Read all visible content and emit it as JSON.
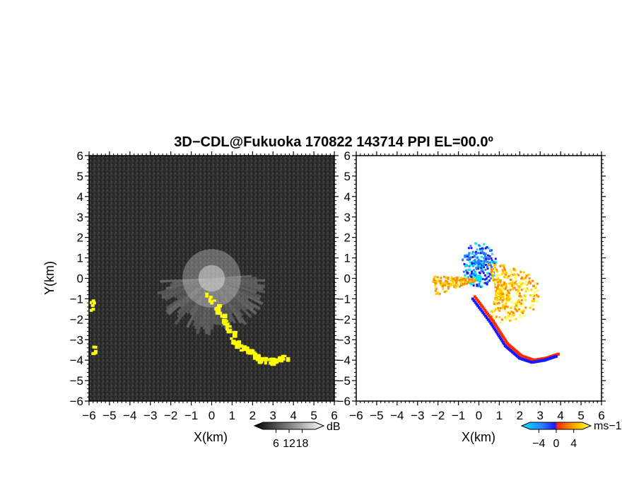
{
  "chart_data": [
    {
      "type": "heatmap",
      "title": "3D−CDL@Fukuoka 170822 143714 PPI EL=00.0º",
      "panel": "reflectivity",
      "xlabel": "X(km)",
      "ylabel": "Y(km)",
      "xlim": [
        -6,
        6
      ],
      "ylim": [
        -6,
        6
      ],
      "xticks": [
        "−6",
        "−5",
        "−4",
        "−3",
        "−2",
        "−1",
        "0",
        "1",
        "2",
        "3",
        "4",
        "5",
        "6"
      ],
      "yticks": [
        "−6",
        "−5",
        "−4",
        "−3",
        "−2",
        "−1",
        "0",
        "1",
        "2",
        "3",
        "4",
        "5",
        "6"
      ],
      "colorbar": {
        "unit": "dB",
        "ticks": [
          "6",
          "12",
          "18"
        ],
        "range": [
          0,
          24
        ],
        "colors": [
          "#000000",
          "#ffffff"
        ]
      },
      "highlight_color": "#ffff00",
      "background_color": "#303030",
      "features": [
        {
          "name": "near-field fan",
          "x": 0,
          "y": 0,
          "radius_km": 2.6,
          "bearing_deg": [
            85,
            265
          ]
        },
        {
          "name": "yellow trail",
          "points": [
            [
              -0.2,
              -0.8
            ],
            [
              0.5,
              -2.0
            ],
            [
              1.2,
              -3.1
            ],
            [
              1.8,
              -3.6
            ],
            [
              2.4,
              -3.9
            ],
            [
              3.0,
              -4.0
            ],
            [
              3.6,
              -3.8
            ]
          ]
        },
        {
          "name": "left edge echoes",
          "points": [
            [
              -5.9,
              -1.3
            ],
            [
              -5.8,
              -3.4
            ]
          ]
        }
      ]
    },
    {
      "type": "heatmap",
      "panel": "doppler velocity",
      "xlabel": "X(km)",
      "xlim": [
        -6,
        6
      ],
      "ylim": [
        -6,
        6
      ],
      "xticks": [
        "−6",
        "−5",
        "−4",
        "−3",
        "−2",
        "−1",
        "0",
        "1",
        "2",
        "3",
        "4",
        "5",
        "6"
      ],
      "yticks": [
        "−6",
        "−5",
        "−4",
        "−3",
        "−2",
        "−1",
        "0",
        "1",
        "2",
        "3",
        "4",
        "5",
        "6"
      ],
      "colorbar": {
        "unit": "ms−1",
        "ticks": [
          "−4",
          "0",
          "4"
        ],
        "range": [
          -6,
          6
        ],
        "colors": [
          "#00e5ff",
          "#2a7fff",
          "#1a1aff",
          "#ff2a00",
          "#ff8c00",
          "#ffd000",
          "#ffff66"
        ]
      },
      "background_color": "#ffffff",
      "features": [
        {
          "name": "blue cluster (approaching)",
          "x": 0,
          "y": 0.7,
          "approx_velocity_ms": -3
        },
        {
          "name": "orange fan (receding)",
          "x": 0.8,
          "y": -0.7,
          "approx_velocity_ms": 3
        },
        {
          "name": "red/blue trail",
          "points": [
            [
              -0.3,
              -0.9
            ],
            [
              0.6,
              -2.1
            ],
            [
              1.3,
              -3.2
            ],
            [
              2.0,
              -3.8
            ],
            [
              2.6,
              -4.0
            ],
            [
              3.2,
              -3.9
            ],
            [
              3.8,
              -3.7
            ]
          ]
        }
      ]
    }
  ]
}
